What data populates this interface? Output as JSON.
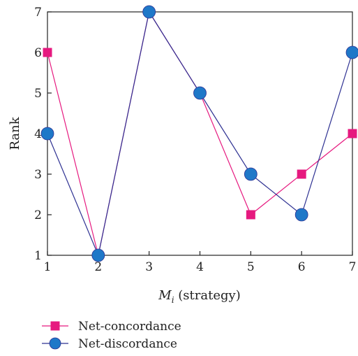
{
  "chart_data": {
    "type": "line",
    "x": [
      1,
      2,
      3,
      4,
      5,
      6,
      7
    ],
    "xlim": [
      1,
      7
    ],
    "ylim": [
      1,
      7
    ],
    "xticks": [
      "1",
      "2",
      "3",
      "4",
      "5",
      "6",
      "7"
    ],
    "yticks": [
      "1",
      "2",
      "3",
      "4",
      "5",
      "6",
      "7"
    ],
    "xlabel_main": "M",
    "xlabel_sub": "i",
    "xlabel_rest": " (strategy)",
    "ylabel": "Rank",
    "grid": false,
    "legend_position": "bottom-left",
    "series": [
      {
        "name": "Net-concordance",
        "values": [
          6,
          1,
          7,
          5,
          2,
          3,
          4
        ],
        "color": "#e6197f",
        "marker": "square"
      },
      {
        "name": "Net-discordance",
        "values": [
          4,
          1,
          7,
          5,
          3,
          2,
          6
        ],
        "color": "#2e3192",
        "marker_color": "#1f78c8",
        "marker": "circle"
      }
    ]
  }
}
